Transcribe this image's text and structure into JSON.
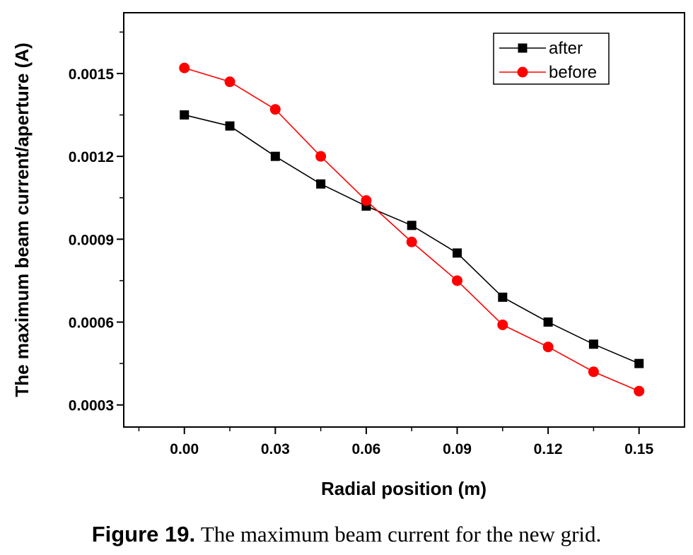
{
  "chart_data": {
    "type": "line",
    "xlabel": "Radial position (m)",
    "ylabel": "The maximum beam current/aperture (A)",
    "xlim": [
      -0.02,
      0.165
    ],
    "ylim": [
      0.00022,
      0.00172
    ],
    "xticks": [
      0.0,
      0.03,
      0.06,
      0.09,
      0.12,
      0.15
    ],
    "xtick_labels": [
      "0.00",
      "0.03",
      "0.06",
      "0.09",
      "0.12",
      "0.15"
    ],
    "yticks": [
      0.0003,
      0.0006,
      0.0009,
      0.0012,
      0.0015
    ],
    "ytick_labels": [
      "0.0003",
      "0.0006",
      "0.0009",
      "0.0012",
      "0.0015"
    ],
    "grid": false,
    "legend_position": "top-right",
    "x": [
      0.0,
      0.015,
      0.03,
      0.045,
      0.06,
      0.075,
      0.09,
      0.105,
      0.12,
      0.135,
      0.15
    ],
    "series": [
      {
        "name": "after",
        "color": "#000000",
        "marker": "square",
        "values": [
          0.00135,
          0.00131,
          0.0012,
          0.0011,
          0.00102,
          0.00095,
          0.00085,
          0.00069,
          0.0006,
          0.00052,
          0.00045
        ]
      },
      {
        "name": "before",
        "color": "#ff0000",
        "marker": "circle",
        "values": [
          0.00152,
          0.00147,
          0.00137,
          0.0012,
          0.00104,
          0.00089,
          0.00075,
          0.00059,
          0.00051,
          0.00042,
          0.00035
        ]
      }
    ]
  },
  "caption": {
    "label": "Figure 19.",
    "text": "The maximum beam current for the new grid."
  }
}
